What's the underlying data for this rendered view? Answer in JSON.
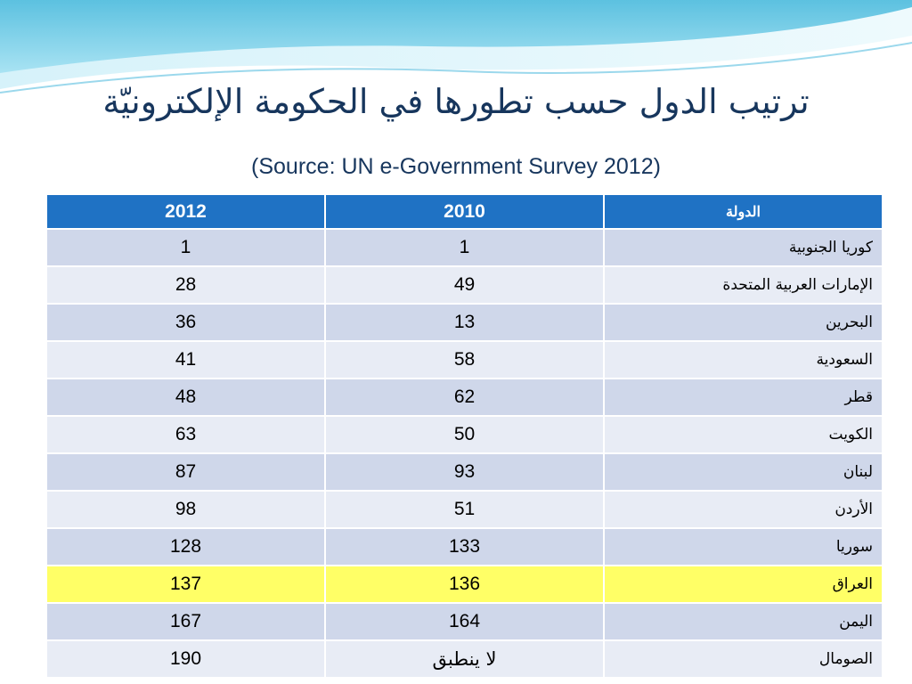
{
  "title": "ترتيب الدول حسب تطورها في الحكومة الإلكترونيّة",
  "subtitle": "(Source: UN e-Government Survey 2012)",
  "colors": {
    "header_bg": "#1f72c4",
    "row_dark": "#cfd7ea",
    "row_light": "#e8ecf5",
    "highlight": "#ffff66",
    "title_text": "#17365d",
    "wave_light": "#bfe9f5",
    "wave_dark": "#6cc6e2"
  },
  "table": {
    "headers": {
      "col_2012": "2012",
      "col_2010": "2010",
      "col_country": "الدولة"
    },
    "rows": [
      {
        "country": "كوريا الجنوبية",
        "y2010": "1",
        "y2012": "1",
        "highlight": false
      },
      {
        "country": "الإمارات العربية المتحدة",
        "y2010": "49",
        "y2012": "28",
        "highlight": false
      },
      {
        "country": "البحرين",
        "y2010": "13",
        "y2012": "36",
        "highlight": false
      },
      {
        "country": "السعودية",
        "y2010": "58",
        "y2012": "41",
        "highlight": false
      },
      {
        "country": "قطر",
        "y2010": "62",
        "y2012": "48",
        "highlight": false
      },
      {
        "country": "الكويت",
        "y2010": "50",
        "y2012": "63",
        "highlight": false
      },
      {
        "country": "لبنان",
        "y2010": "93",
        "y2012": "87",
        "highlight": false
      },
      {
        "country": "الأردن",
        "y2010": "51",
        "y2012": "98",
        "highlight": false
      },
      {
        "country": "سوريا",
        "y2010": "133",
        "y2012": "128",
        "highlight": false
      },
      {
        "country": "العراق",
        "y2010": "136",
        "y2012": "137",
        "highlight": true
      },
      {
        "country": "اليمن",
        "y2010": "164",
        "y2012": "167",
        "highlight": false
      },
      {
        "country": "الصومال",
        "y2010": "لا ينطبق",
        "y2012": "190",
        "highlight": false
      }
    ]
  }
}
